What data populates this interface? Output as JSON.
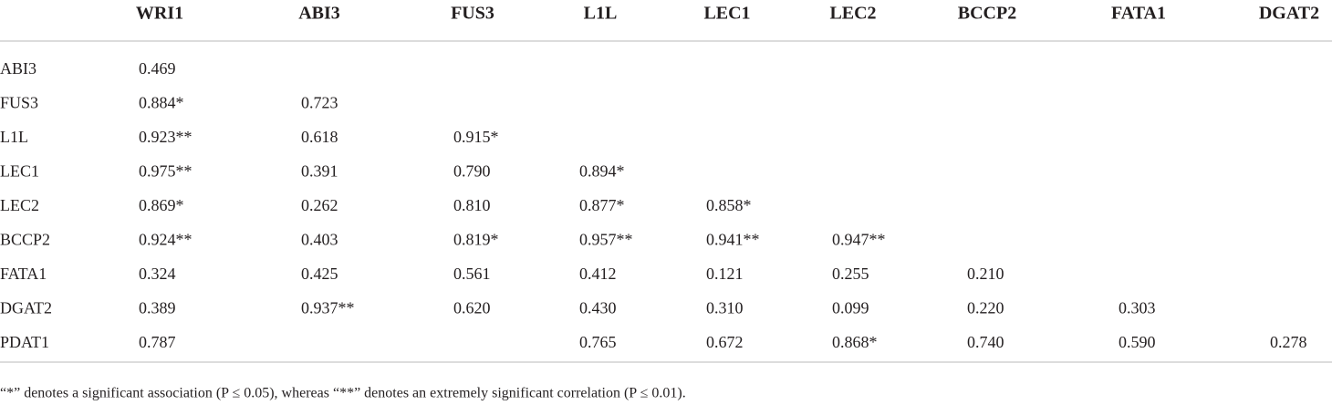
{
  "table": {
    "columns": [
      "WRI1",
      "ABI3",
      "FUS3",
      "L1L",
      "LEC1",
      "LEC2",
      "BCCP2",
      "FATA1",
      "DGAT2"
    ],
    "rows": [
      {
        "label": "ABI3",
        "cells": [
          "0.469"
        ]
      },
      {
        "label": "FUS3",
        "cells": [
          "0.884*",
          "0.723"
        ]
      },
      {
        "label": "L1L",
        "cells": [
          "0.923**",
          "0.618",
          "0.915*"
        ]
      },
      {
        "label": "LEC1",
        "cells": [
          "0.975**",
          "0.391",
          "0.790",
          "0.894*"
        ]
      },
      {
        "label": "LEC2",
        "cells": [
          "0.869*",
          "0.262",
          "0.810",
          "0.877*",
          "0.858*"
        ]
      },
      {
        "label": "BCCP2",
        "cells": [
          "0.924**",
          "0.403",
          "0.819*",
          "0.957**",
          "0.941**",
          "0.947**"
        ]
      },
      {
        "label": "FATA1",
        "cells": [
          "0.324",
          "0.425",
          "0.561",
          "0.412",
          "0.121",
          "0.255",
          "0.210"
        ]
      },
      {
        "label": "DGAT2",
        "cells": [
          "0.389",
          "0.937**",
          "0.620",
          "0.430",
          "0.310",
          "0.099",
          "0.220",
          "0.303"
        ]
      },
      {
        "label": "PDAT1",
        "cells": [
          "0.787",
          null,
          null,
          "0.765",
          "0.672",
          "0.868*",
          "0.740",
          "0.590",
          "0.278"
        ]
      }
    ],
    "footnote": "“*” denotes a significant association (P ≤ 0.05), whereas “**” denotes an extremely significant correlation (P ≤ 0.01)."
  }
}
